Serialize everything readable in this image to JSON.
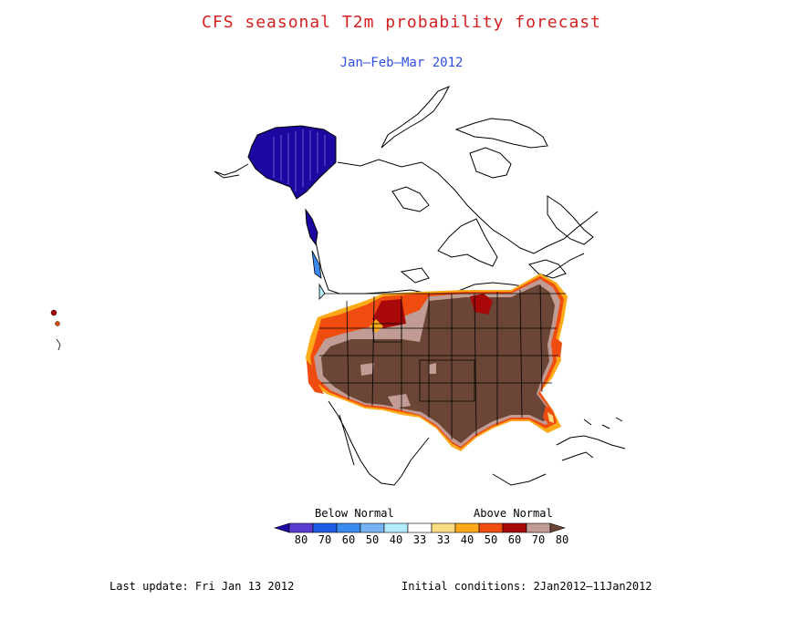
{
  "title": "CFS seasonal T2m probability forecast",
  "subtitle": "Jan—Feb—Mar 2012",
  "legend": {
    "below_label": "Below Normal",
    "above_label": "Above Normal",
    "ticks": [
      "80",
      "70",
      "60",
      "50",
      "40",
      "33",
      "33",
      "40",
      "50",
      "60",
      "70",
      "80"
    ],
    "colors": [
      "#1c08a0",
      "#5a3cd0",
      "#1e5ce8",
      "#3c8cf0",
      "#78b4f4",
      "#b4ecfc",
      "#ffffff",
      "#fcdc82",
      "#fcaa18",
      "#f04c10",
      "#a80808",
      "#c09c94",
      "#6b4636"
    ]
  },
  "footer": {
    "last_update": "Last update: Fri Jan 13 2012",
    "initial_conditions": "Initial conditions: 2Jan2012—11Jan2012"
  }
}
